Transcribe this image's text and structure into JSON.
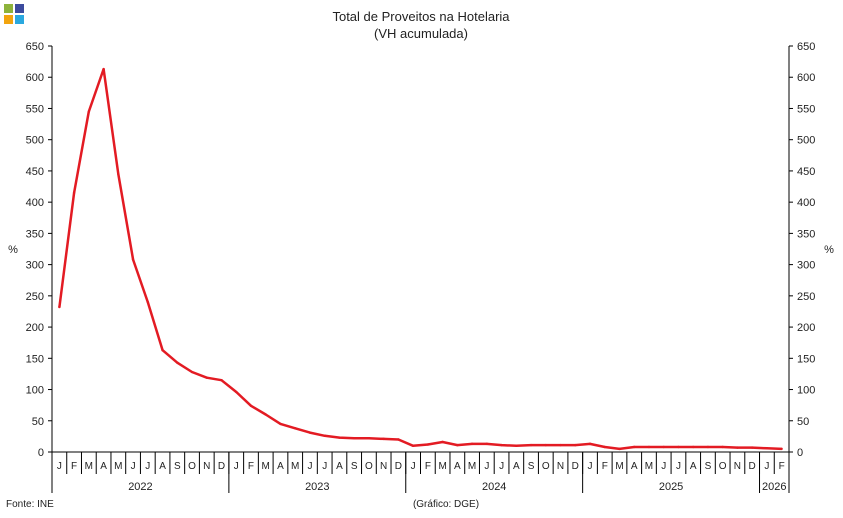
{
  "chart_data": {
    "type": "line",
    "title": "Total de Proveitos na Hotelaria",
    "subtitle": "(VH acumulada)",
    "ylabel": "%",
    "ylabel_right": "%",
    "ylim": [
      0,
      650
    ],
    "yticks": [
      0,
      50,
      100,
      150,
      200,
      250,
      300,
      350,
      400,
      450,
      500,
      550,
      600,
      650
    ],
    "grid": false,
    "source": "Fonte: INE",
    "credit": "(Gráfico: DGE)",
    "x": [
      "2022-01",
      "2022-02",
      "2022-03",
      "2022-04",
      "2022-05",
      "2022-06",
      "2022-07",
      "2022-08",
      "2022-09",
      "2022-10",
      "2022-11",
      "2022-12",
      "2023-01",
      "2023-02",
      "2023-03",
      "2023-04",
      "2023-05",
      "2023-06",
      "2023-07",
      "2023-08",
      "2023-09",
      "2023-10",
      "2023-11",
      "2023-12",
      "2024-01",
      "2024-02",
      "2024-03",
      "2024-04",
      "2024-05",
      "2024-06",
      "2024-07",
      "2024-08",
      "2024-09",
      "2024-10",
      "2024-11",
      "2024-12",
      "2025-01",
      "2025-02",
      "2025-03",
      "2025-04",
      "2025-05",
      "2025-06",
      "2025-07",
      "2025-08",
      "2025-09",
      "2025-10",
      "2025-11",
      "2025-12",
      "2026-01",
      "2026-02"
    ],
    "month_labels": [
      "J",
      "F",
      "M",
      "A",
      "M",
      "J",
      "J",
      "A",
      "S",
      "O",
      "N",
      "D",
      "J",
      "F",
      "M",
      "A",
      "M",
      "J",
      "J",
      "A",
      "S",
      "O",
      "N",
      "D",
      "J",
      "F",
      "M",
      "A",
      "M",
      "J",
      "J",
      "A",
      "S",
      "O",
      "N",
      "D",
      "J",
      "F",
      "M",
      "A",
      "M",
      "J",
      "J",
      "A",
      "S",
      "O",
      "N",
      "D",
      "J",
      "F"
    ],
    "years": [
      {
        "label": "2022",
        "months": 12
      },
      {
        "label": "2023",
        "months": 12
      },
      {
        "label": "2024",
        "months": 12
      },
      {
        "label": "2025",
        "months": 12
      },
      {
        "label": "2026",
        "months": 2
      }
    ],
    "series": [
      {
        "color": "#e31b23",
        "values": [
          232,
          415,
          545,
          613,
          445,
          308,
          240,
          163,
          143,
          128,
          119,
          115,
          96,
          74,
          60,
          45,
          38,
          31,
          26,
          23,
          22,
          22,
          21,
          20,
          10,
          12,
          16,
          11,
          13,
          13,
          11,
          10,
          11,
          11,
          11,
          11,
          13,
          8,
          5,
          8,
          8,
          8,
          8,
          8,
          8,
          8,
          7,
          7,
          6,
          5
        ]
      }
    ]
  },
  "logo_colors": [
    "#8db33b",
    "#3c4b9e",
    "#f2a40e",
    "#2aa8df"
  ]
}
